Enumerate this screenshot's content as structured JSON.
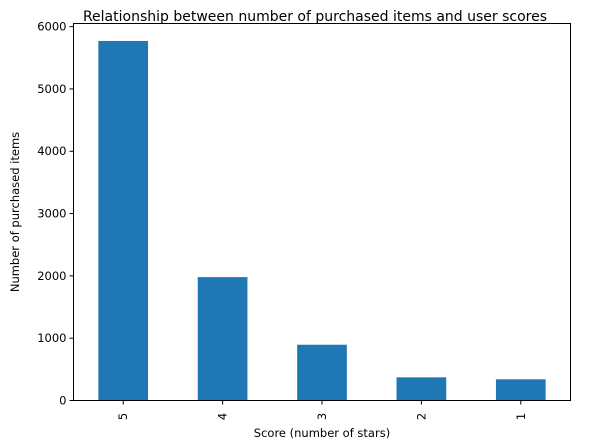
{
  "chart_data": {
    "type": "bar",
    "title": "Relationship between number of purchased items and user scores",
    "xlabel": "Score (number of stars)",
    "ylabel": "Number of purchased items",
    "categories": [
      "5",
      "4",
      "3",
      "2",
      "1"
    ],
    "values": [
      5770,
      1980,
      895,
      372,
      340
    ],
    "ylim": [
      0,
      6050
    ],
    "yticks": [
      0,
      1000,
      2000,
      3000,
      4000,
      5000,
      6000
    ],
    "grid": false,
    "legend": "none",
    "bar_color": "#1f77b4"
  }
}
